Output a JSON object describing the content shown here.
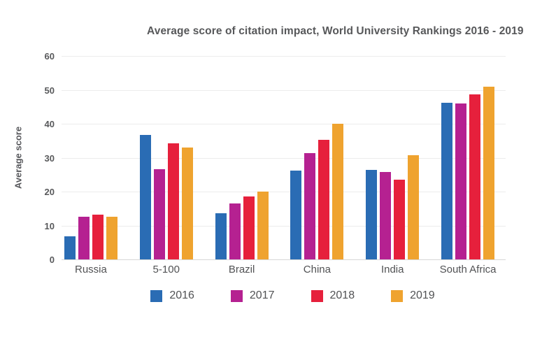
{
  "chart_data": {
    "type": "bar",
    "title": "Average score of citation impact, World University Rankings 2016 - 2019",
    "xlabel": "",
    "ylabel": "Average score",
    "ylim": [
      0,
      60
    ],
    "yticks": [
      0,
      10,
      20,
      30,
      40,
      50,
      60
    ],
    "grid": true,
    "legend_position": "bottom",
    "categories": [
      "Russia",
      "5-100",
      "Brazil",
      "China",
      "India",
      "South Africa"
    ],
    "series": [
      {
        "name": "2016",
        "color": "#2a6cb4",
        "values": [
          6.8,
          36.7,
          13.6,
          26.2,
          26.3,
          46.1
        ]
      },
      {
        "name": "2017",
        "color": "#b52191",
        "values": [
          12.5,
          26.5,
          16.5,
          31.3,
          25.7,
          45.9
        ]
      },
      {
        "name": "2018",
        "color": "#e6203c",
        "values": [
          13.2,
          34.2,
          18.6,
          35.2,
          23.6,
          48.6
        ]
      },
      {
        "name": "2019",
        "color": "#efa32f",
        "values": [
          12.6,
          33.0,
          20.0,
          40.1,
          30.7,
          51.0
        ]
      }
    ]
  },
  "colors": {
    "background": "#ffffff",
    "title_text": "#57585a",
    "axis_text": "#58595b",
    "label_text": "#515254",
    "gridline": "#ececec",
    "baseline": "#d6d6d6"
  }
}
